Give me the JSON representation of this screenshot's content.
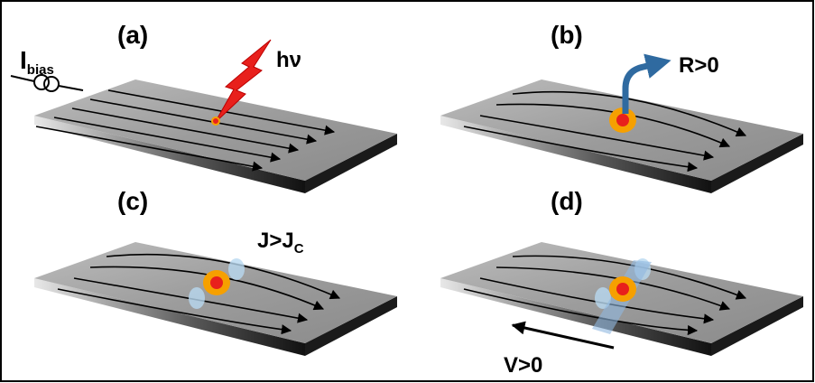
{
  "panels": [
    {
      "label": "(a)"
    },
    {
      "label": "(b)"
    },
    {
      "label": "(c)"
    },
    {
      "label": "(d)"
    }
  ],
  "annotations": {
    "bias_current": {
      "symbol": "I",
      "subscript": "bias"
    },
    "photon": "hν",
    "resistance": "R>0",
    "current_density": {
      "text": "J>J",
      "subscript": "C"
    },
    "voltage": "V>0"
  }
}
